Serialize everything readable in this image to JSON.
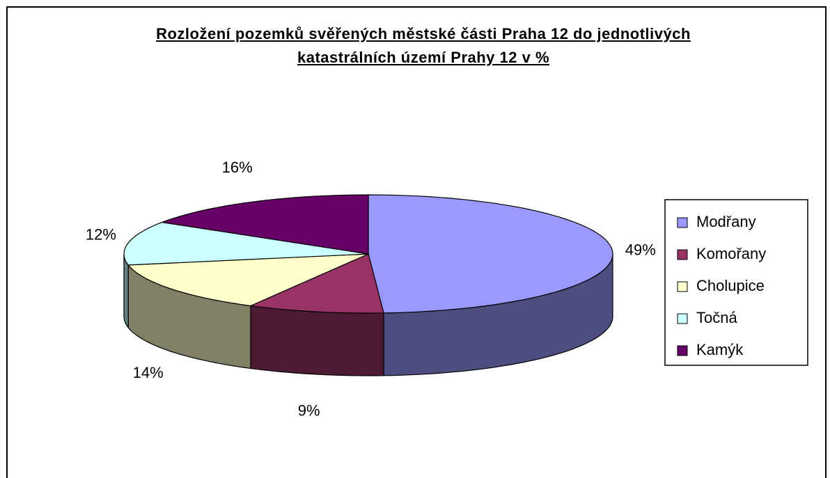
{
  "chart_data": {
    "type": "pie",
    "title": "Rozložení pozemků svěřených městské části Praha 12 do jednotlivých katastrálních území Prahy 12 v %",
    "categories": [
      "Modřany",
      "Komořany",
      "Cholupice",
      "Točná",
      "Kamýk"
    ],
    "values": [
      49,
      9,
      14,
      12,
      16
    ],
    "value_labels": [
      "49%",
      "9%",
      "14%",
      "12%",
      "16%"
    ],
    "colors": [
      "#9999ff",
      "#993366",
      "#ffffcc",
      "#ccffff",
      "#660066"
    ],
    "legend": "right"
  }
}
